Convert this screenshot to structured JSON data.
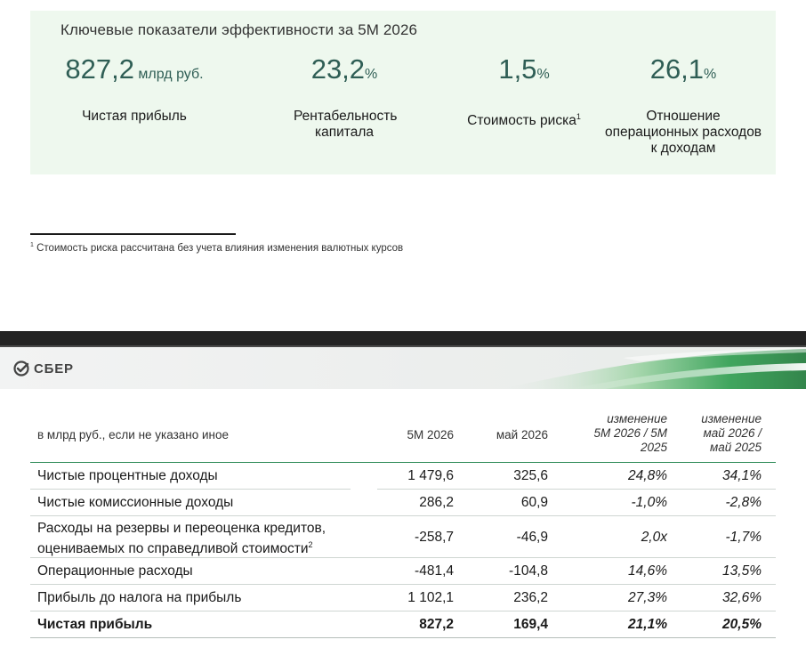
{
  "kpi": {
    "title": "Ключевые показатели эффективности за 5М 2026",
    "items": [
      {
        "value": "827,2",
        "unit": " млрд руб.",
        "label": "Чистая прибыль",
        "sup": ""
      },
      {
        "value": "23,2",
        "unit": "%",
        "label": "Рентабельность капитала",
        "sup": ""
      },
      {
        "value": "1,5",
        "unit": "%",
        "label": "Стоимость риска",
        "sup": "1"
      },
      {
        "value": "26,1",
        "unit": "%",
        "label": "Отношение операционных расходов к доходам",
        "sup": ""
      }
    ],
    "footnote_mark": "1",
    "footnote": "Стоимость риска рассчитана без учета влияния изменения валютных курсов"
  },
  "slide": {
    "logo_text": "СБЕР",
    "colors": {
      "accent": "#2e8b57",
      "kpi_value": "#2f5e55",
      "panel_bg": "#eef8ee"
    }
  },
  "table": {
    "caption": "в млрд руб., если не указано иное",
    "headers": [
      "5М 2026",
      "май 2026",
      "изменение 5М 2026 / 5М 2025",
      "изменение май 2026 / май 2025"
    ],
    "rows": [
      {
        "label": "Чистые процентные доходы",
        "sup": "",
        "values": [
          "1 479,6",
          "325,6",
          "24,8%",
          "34,1%"
        ]
      },
      {
        "label": "Чистые комиссионные доходы",
        "sup": "",
        "values": [
          "286,2",
          "60,9",
          "-1,0%",
          "-2,8%"
        ]
      },
      {
        "label": "Расходы на резервы и переоценка кредитов, оцениваемых по справедливой стоимости",
        "sup": "2",
        "values": [
          "-258,7",
          "-46,9",
          "2,0x",
          "-1,7%"
        ]
      },
      {
        "label": "Операционные расходы",
        "sup": "",
        "values": [
          "-481,4",
          "-104,8",
          "14,6%",
          "13,5%"
        ]
      },
      {
        "label": "Прибыль до налога на прибыль",
        "sup": "",
        "values": [
          "1 102,1",
          "236,2",
          "27,3%",
          "32,6%"
        ]
      },
      {
        "label": "Чистая прибыль",
        "sup": "",
        "values": [
          "827,2",
          "169,4",
          "21,1%",
          "20,5%"
        ]
      }
    ]
  }
}
